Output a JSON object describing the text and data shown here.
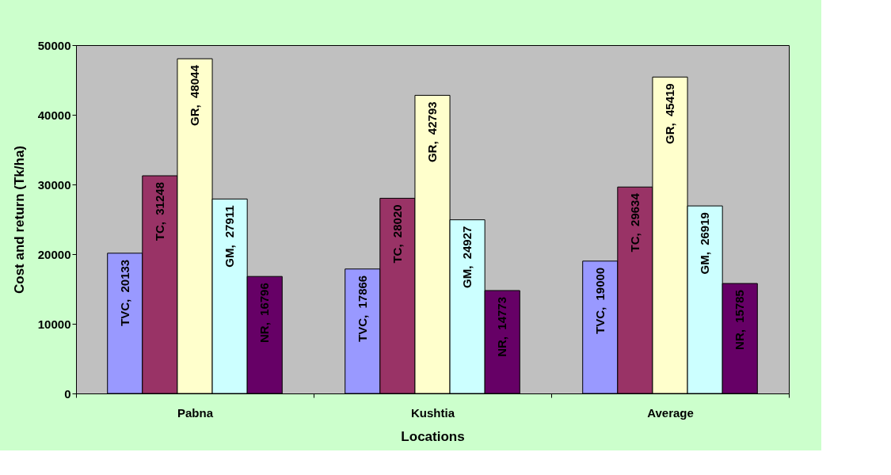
{
  "chart_data": {
    "type": "bar",
    "xlabel": "Locations",
    "ylabel": "Cost and return (Tk/ha)",
    "categories": [
      "Pabna",
      "Kushtia",
      "Average"
    ],
    "series": [
      {
        "name": "TVC,",
        "color": "#9999ff",
        "values": [
          20133,
          17866,
          19000
        ]
      },
      {
        "name": "TC,",
        "color": "#993366",
        "values": [
          31248,
          28020,
          29634
        ]
      },
      {
        "name": "GR,",
        "color": "#ffffcc",
        "values": [
          48044,
          42793,
          45419
        ]
      },
      {
        "name": "GM,",
        "color": "#ccffff",
        "values": [
          27911,
          24927,
          26919
        ]
      },
      {
        "name": "NR,",
        "color": "#660066",
        "values": [
          16796,
          14773,
          15785
        ]
      }
    ],
    "data_labels": true,
    "ylim": [
      0,
      50000
    ],
    "yticks": [
      0,
      10000,
      20000,
      30000,
      40000,
      50000
    ],
    "grid": false,
    "legend": false
  }
}
